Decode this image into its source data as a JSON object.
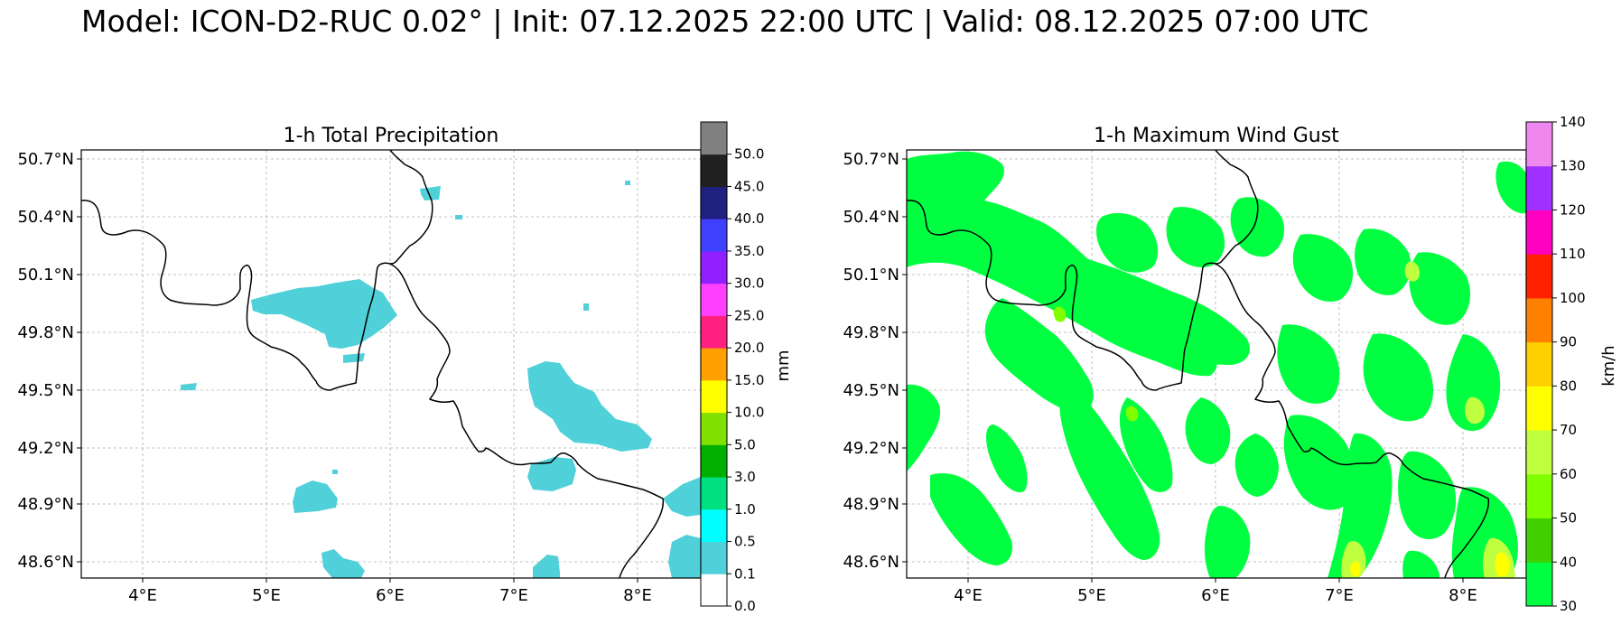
{
  "title": "Model: ICON-D2-RUC 0.02° | Init: 07.12.2025 22:00 UTC | Valid: 08.12.2025 07:00 UTC",
  "panels": [
    {
      "id": "precip",
      "title": "1-h Total Precipitation",
      "lon_range": [
        3.5,
        8.5
      ],
      "lat_range": [
        48.5,
        50.72
      ],
      "xticks": [
        "4°E",
        "5°E",
        "6°E",
        "7°E",
        "8°E"
      ],
      "yticks": [
        "48.6°N",
        "48.9°N",
        "49.2°N",
        "49.5°N",
        "49.8°N",
        "50.1°N",
        "50.4°N",
        "50.7°N"
      ],
      "colorbar": {
        "label": "mm",
        "ticks": [
          "0.0",
          "0.1",
          "0.5",
          "1.0",
          "3.0",
          "5.0",
          "10.0",
          "15.0",
          "20.0",
          "25.0",
          "30.0",
          "35.0",
          "40.0",
          "45.0",
          "50.0"
        ],
        "colors": [
          "#ffffff",
          "#50d0d8",
          "#00ffff",
          "#00e080",
          "#00b000",
          "#80e000",
          "#ffff00",
          "#ffa000",
          "#ff2080",
          "#ff40ff",
          "#9020ff",
          "#4040ff",
          "#202080",
          "#202020",
          "#808080"
        ]
      }
    },
    {
      "id": "gust",
      "title": "1-h Maximum Wind Gust",
      "lon_range": [
        3.5,
        8.5
      ],
      "lat_range": [
        48.5,
        50.72
      ],
      "xticks": [
        "4°E",
        "5°E",
        "6°E",
        "7°E",
        "8°E"
      ],
      "yticks": [
        "48.6°N",
        "48.9°N",
        "49.2°N",
        "49.5°N",
        "49.8°N",
        "50.1°N",
        "50.4°N",
        "50.7°N"
      ],
      "colorbar": {
        "label": "km/h",
        "ticks": [
          "30",
          "40",
          "50",
          "60",
          "70",
          "80",
          "90",
          "100",
          "110",
          "120",
          "130",
          "140"
        ],
        "colors": [
          "#00ff40",
          "#40d000",
          "#80ff00",
          "#c0ff40",
          "#ffff00",
          "#ffd000",
          "#ff8000",
          "#ff2000",
          "#ff00c0",
          "#a030ff",
          "#ee88ee"
        ]
      }
    }
  ]
}
